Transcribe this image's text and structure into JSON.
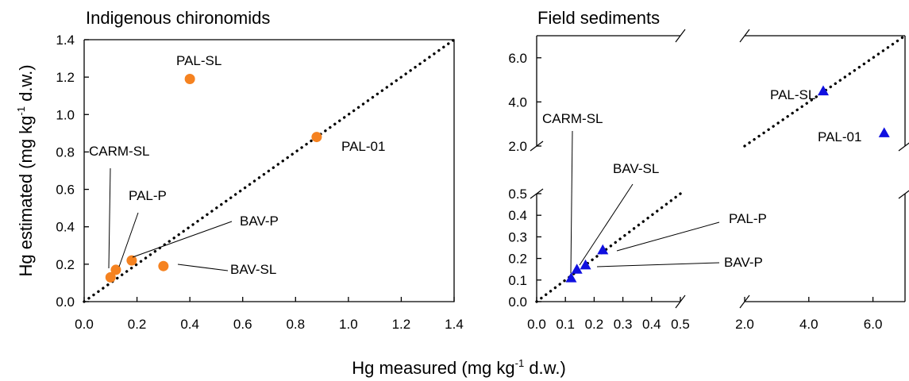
{
  "chart_data": [
    {
      "type": "scatter",
      "title": "Indigenous chironomids",
      "ylabel": {
        "pre": "Hg estimated (mg kg",
        "sup": "-1",
        "post": " d.w.)"
      },
      "xlim": [
        0,
        1.4
      ],
      "ylim": [
        0,
        1.4
      ],
      "xticks": [
        "0.0",
        "0.2",
        "0.4",
        "0.6",
        "0.8",
        "1.0",
        "1.2",
        "1.4"
      ],
      "yticks": [
        "0.0",
        "0.2",
        "0.4",
        "0.6",
        "0.8",
        "1.0",
        "1.2",
        "1.4"
      ],
      "one_to_one_line": true,
      "marker": "circle",
      "marker_color": "#F58220",
      "points": [
        {
          "label": "CARM-SL",
          "x": 0.1,
          "y": 0.13
        },
        {
          "label": "PAL-P",
          "x": 0.12,
          "y": 0.17
        },
        {
          "label": "BAV-P",
          "x": 0.18,
          "y": 0.22
        },
        {
          "label": "BAV-SL",
          "x": 0.3,
          "y": 0.19
        },
        {
          "label": "PAL-SL",
          "x": 0.4,
          "y": 1.19
        },
        {
          "label": "PAL-01",
          "x": 0.88,
          "y": 0.88
        }
      ]
    },
    {
      "type": "scatter",
      "title": "Field sediments",
      "broken_axes": true,
      "x_segments": [
        {
          "range": [
            0,
            0.5
          ],
          "ticks": [
            "0.0",
            "0.1",
            "0.2",
            "0.3",
            "0.4",
            "0.5"
          ]
        },
        {
          "range": [
            2.0,
            7.0
          ],
          "ticks": [
            "2.0",
            "4.0",
            "6.0"
          ]
        }
      ],
      "y_segments": [
        {
          "range": [
            0,
            0.5
          ],
          "ticks": [
            "0.0",
            "0.1",
            "0.2",
            "0.3",
            "0.4",
            "0.5"
          ]
        },
        {
          "range": [
            2.0,
            7.0
          ],
          "ticks": [
            "2.0",
            "4.0",
            "6.0"
          ]
        }
      ],
      "one_to_one_line": true,
      "marker": "triangle",
      "marker_color": "#1010E0",
      "points": [
        {
          "label": "CARM-SL",
          "x": 0.12,
          "y": 0.11
        },
        {
          "label": "BAV-SL",
          "x": 0.14,
          "y": 0.15
        },
        {
          "label": "BAV-P",
          "x": 0.17,
          "y": 0.17
        },
        {
          "label": "PAL-P",
          "x": 0.23,
          "y": 0.24
        },
        {
          "label": "PAL-SL",
          "x": 4.45,
          "y": 4.5
        },
        {
          "label": "PAL-01",
          "x": 6.35,
          "y": 2.6
        }
      ]
    }
  ],
  "shared_xlabel": {
    "pre": "Hg measured (mg kg",
    "sup": "-1",
    "post": " d.w.)"
  }
}
